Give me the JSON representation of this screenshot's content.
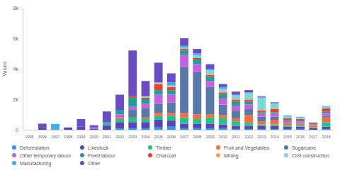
{
  "chart_data": {
    "type": "bar",
    "stacked": true,
    "y_label": "Values",
    "categories": [
      "1995",
      "1996",
      "1997",
      "1998",
      "1999",
      "2000",
      "2001",
      "2002",
      "2003",
      "2004",
      "2005",
      "2006",
      "2007",
      "2008",
      "2009",
      "2010",
      "2011",
      "2012",
      "2013",
      "2014",
      "2015",
      "2016",
      "2017",
      "2018"
    ],
    "ylim": [
      0,
      8000
    ],
    "yticks": [
      0,
      {
        "value": 2000,
        "label": "2k"
      },
      {
        "value": 4000,
        "label": "4k"
      },
      {
        "value": 6000,
        "label": "6k"
      },
      {
        "value": 8000,
        "label": "8k"
      }
    ],
    "grid": false,
    "legend": "bottom",
    "series": [
      {
        "name": "Deforestation",
        "color": "#1e9cf0",
        "values": [
          0,
          0,
          0,
          0,
          0,
          0,
          0,
          100,
          100,
          100,
          150,
          200,
          100,
          100,
          100,
          100,
          50,
          50,
          50,
          50,
          50,
          50,
          0,
          50
        ]
      },
      {
        "name": "Livestock",
        "color": "#5a43b8",
        "values": [
          0,
          100,
          0,
          150,
          200,
          50,
          300,
          400,
          400,
          400,
          500,
          400,
          300,
          300,
          300,
          250,
          200,
          200,
          200,
          200,
          150,
          150,
          100,
          150
        ]
      },
      {
        "name": "Timber",
        "color": "#1fc48a",
        "values": [
          0,
          0,
          0,
          0,
          0,
          0,
          100,
          200,
          300,
          200,
          250,
          300,
          400,
          300,
          400,
          400,
          300,
          200,
          100,
          100,
          100,
          100,
          50,
          300
        ]
      },
      {
        "name": "Fruit and Vegetables",
        "color": "#f76b3c",
        "values": [
          0,
          0,
          0,
          0,
          0,
          0,
          0,
          100,
          0,
          100,
          200,
          200,
          300,
          300,
          200,
          200,
          200,
          500,
          200,
          300,
          150,
          100,
          100,
          300
        ]
      },
      {
        "name": "Sugarcane",
        "color": "#5878a8",
        "values": [
          0,
          0,
          0,
          0,
          0,
          0,
          0,
          0,
          500,
          600,
          600,
          700,
          3000,
          2800,
          1800,
          700,
          500,
          400,
          300,
          200,
          50,
          50,
          0,
          100
        ]
      },
      {
        "name": "Other temporary labour",
        "color": "#c561e0",
        "values": [
          0,
          0,
          0,
          0,
          0,
          100,
          0,
          200,
          200,
          300,
          600,
          500,
          800,
          500,
          400,
          400,
          300,
          300,
          200,
          200,
          100,
          100,
          50,
          200
        ]
      },
      {
        "name": "Fixed labour",
        "color": "#229e9a",
        "values": [
          0,
          0,
          0,
          0,
          0,
          0,
          100,
          300,
          600,
          300,
          300,
          300,
          300,
          300,
          300,
          300,
          300,
          200,
          100,
          100,
          50,
          50,
          50,
          100
        ]
      },
      {
        "name": "Charcoal",
        "color": "#e8412e",
        "values": [
          0,
          0,
          0,
          0,
          0,
          0,
          0,
          0,
          100,
          100,
          400,
          200,
          100,
          100,
          100,
          100,
          100,
          100,
          100,
          200,
          100,
          100,
          100,
          200
        ]
      },
      {
        "name": "Mining",
        "color": "#f7a15a",
        "values": [
          0,
          0,
          0,
          0,
          0,
          0,
          0,
          0,
          0,
          0,
          50,
          50,
          0,
          0,
          50,
          50,
          50,
          50,
          50,
          50,
          0,
          0,
          0,
          0
        ]
      },
      {
        "name": "Civil construction",
        "color": "#7cd8d4",
        "values": [
          0,
          0,
          0,
          0,
          0,
          0,
          0,
          0,
          0,
          100,
          50,
          50,
          100,
          200,
          250,
          200,
          250,
          400,
          800,
          300,
          150,
          100,
          50,
          100
        ]
      },
      {
        "name": "Manufacturing",
        "color": "#3aaeef",
        "values": [
          0,
          0,
          380,
          0,
          0,
          0,
          0,
          0,
          0,
          0,
          0,
          200,
          100,
          100,
          100,
          100,
          50,
          50,
          50,
          50,
          50,
          50,
          0,
          50
        ]
      },
      {
        "name": "Other",
        "color": "#6b4cc8",
        "values": [
          0,
          300,
          0,
          0,
          500,
          150,
          700,
          1000,
          3000,
          1000,
          1300,
          600,
          500,
          300,
          300,
          200,
          200,
          150,
          50,
          50,
          0,
          0,
          0,
          0
        ]
      }
    ]
  }
}
